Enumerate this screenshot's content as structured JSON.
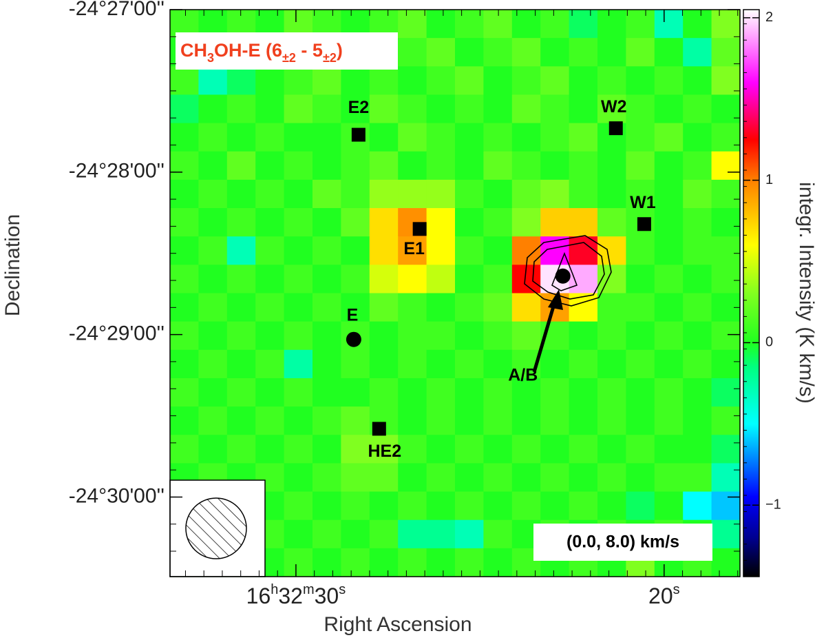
{
  "chart_data": {
    "type": "heatmap",
    "title": "CH3OH-E (6±2 - 5±2)",
    "annotation": "(0.0, 8.0) km/s",
    "x_label": "Right Ascension",
    "y_label": "Declination",
    "colorbar_label": "integr. Intensity (K km/s)",
    "xlim": [
      33.42,
      17.94
    ],
    "ylim": [
      27.0,
      30.49
    ],
    "xticks": [
      {
        "value": 30,
        "label": "16h32m30s"
      },
      {
        "value": 20,
        "label": "20s"
      }
    ],
    "yticks": [
      {
        "value": 27,
        "label": "-24°27'00''"
      },
      {
        "value": 28,
        "label": "-24°28'00''"
      },
      {
        "value": 29,
        "label": "-24°29'00''"
      },
      {
        "value": 30,
        "label": "-24°30'00''"
      }
    ],
    "zlim": [
      -1.44,
      2.05
    ],
    "zticks": [
      {
        "value": -1,
        "label": "−1"
      },
      0,
      1,
      2
    ],
    "colorscale": [
      [
        -1.44,
        "#000000"
      ],
      [
        -1.2,
        "#000090"
      ],
      [
        -0.95,
        "#0000ff"
      ],
      [
        -0.5,
        "#00ffff"
      ],
      [
        -0.15,
        "#00ff80"
      ],
      [
        0,
        "#20ff20"
      ],
      [
        0.3,
        "#80ff20"
      ],
      [
        0.6,
        "#ffff00"
      ],
      [
        1.0,
        "#ff8000"
      ],
      [
        1.25,
        "#ff0000"
      ],
      [
        1.6,
        "#ff00ff"
      ],
      [
        2.05,
        "#ffffff"
      ]
    ],
    "z": [
      [
        0.1,
        0.0,
        0.1,
        0.0,
        0.2,
        0.1,
        0.0,
        0.1,
        0.2,
        0.0,
        0.1,
        0.2,
        0.0,
        0.1,
        -0.1,
        0.0,
        0.1,
        -0.3,
        0.0,
        0.3
      ],
      [
        0.0,
        -0.1,
        -0.2,
        0.0,
        0.1,
        0.0,
        0.1,
        0.0,
        0.1,
        0.2,
        0.0,
        0.1,
        0.2,
        0.0,
        0.1,
        0.0,
        0.2,
        0.0,
        -0.25,
        0.2
      ],
      [
        0.1,
        -0.3,
        -0.1,
        0.0,
        0.1,
        0.2,
        0.0,
        0.1,
        0.0,
        0.1,
        0.2,
        0.0,
        0.1,
        0.2,
        0.0,
        0.1,
        0.0,
        0.1,
        0.0,
        0.3
      ],
      [
        -0.1,
        0.0,
        0.1,
        0.0,
        0.2,
        0.1,
        0.0,
        0.2,
        0.1,
        0.0,
        0.1,
        0.0,
        0.2,
        0.1,
        0.0,
        0.2,
        0.1,
        0.0,
        0.1,
        0.0
      ],
      [
        0.0,
        0.1,
        0.0,
        0.1,
        0.0,
        0.0,
        0.1,
        0.0,
        0.2,
        0.1,
        0.0,
        0.1,
        0.0,
        0.1,
        0.2,
        0.0,
        0.1,
        0.2,
        0.0,
        0.1
      ],
      [
        0.1,
        0.0,
        0.2,
        0.0,
        0.1,
        0.0,
        0.1,
        0.2,
        0.0,
        0.1,
        0.0,
        0.2,
        0.1,
        0.0,
        0.1,
        0.0,
        0.2,
        0.0,
        0.1,
        0.6
      ],
      [
        0.0,
        0.1,
        0.0,
        0.1,
        0.0,
        0.2,
        0.1,
        0.35,
        0.35,
        0.35,
        0.1,
        0.0,
        0.2,
        0.3,
        0.1,
        0.0,
        0.1,
        0.0,
        0.2,
        0.1
      ],
      [
        0.1,
        0.0,
        0.1,
        0.0,
        0.1,
        0.0,
        0.2,
        0.7,
        0.95,
        0.6,
        0.0,
        0.1,
        0.3,
        0.75,
        0.75,
        0.2,
        0.1,
        0.0,
        0.1,
        0.0
      ],
      [
        0.0,
        0.1,
        -0.3,
        0.1,
        0.0,
        0.1,
        0.0,
        0.7,
        0.9,
        0.6,
        0.1,
        0.0,
        1.0,
        1.6,
        1.3,
        0.7,
        0.1,
        0.0,
        0.1,
        0.1
      ],
      [
        0.1,
        0.0,
        0.1,
        0.0,
        0.1,
        0.0,
        0.1,
        0.5,
        0.6,
        0.45,
        0.0,
        0.1,
        1.25,
        2.0,
        1.9,
        0.3,
        0.0,
        0.1,
        0.0,
        0.1
      ],
      [
        0.0,
        0.1,
        0.0,
        0.1,
        0.0,
        0.1,
        0.0,
        0.2,
        0.1,
        0.0,
        0.1,
        0.2,
        0.7,
        0.9,
        0.6,
        0.1,
        0.1,
        0.0,
        0.1,
        0.0
      ],
      [
        0.1,
        0.0,
        0.1,
        0.0,
        0.1,
        0.0,
        0.1,
        0.0,
        0.1,
        0.1,
        0.0,
        0.1,
        0.2,
        0.1,
        0.0,
        0.1,
        0.0,
        0.1,
        0.0,
        0.1
      ],
      [
        0.0,
        0.1,
        0.0,
        0.1,
        -0.25,
        0.0,
        0.1,
        0.0,
        0.1,
        0.0,
        0.1,
        0.0,
        0.1,
        0.0,
        0.1,
        0.0,
        0.1,
        0.0,
        0.1,
        0.0
      ],
      [
        0.1,
        0.0,
        0.1,
        0.0,
        0.1,
        0.0,
        0.0,
        0.1,
        0.0,
        0.1,
        0.0,
        0.1,
        0.0,
        0.1,
        0.0,
        0.1,
        0.0,
        0.1,
        0.0,
        -0.1
      ],
      [
        0.0,
        0.1,
        0.0,
        0.1,
        0.0,
        0.1,
        0.2,
        0.1,
        0.0,
        0.1,
        0.0,
        0.1,
        0.0,
        0.1,
        0.0,
        0.1,
        0.0,
        0.1,
        0.0,
        0.1
      ],
      [
        0.1,
        0.0,
        0.1,
        0.0,
        0.1,
        0.0,
        0.3,
        0.3,
        0.1,
        0.0,
        0.1,
        0.0,
        0.1,
        0.0,
        0.1,
        0.0,
        0.1,
        0.0,
        0.0,
        -0.1
      ],
      [
        0.0,
        0.1,
        0.0,
        0.1,
        0.0,
        0.1,
        0.2,
        0.2,
        0.0,
        0.1,
        0.0,
        0.1,
        0.0,
        0.1,
        0.0,
        0.1,
        0.0,
        0.1,
        0.1,
        -0.3
      ],
      [
        0.1,
        0.0,
        0.1,
        0.0,
        0.1,
        0.0,
        0.1,
        0.0,
        0.1,
        0.0,
        0.1,
        0.0,
        0.1,
        0.0,
        0.1,
        0.0,
        -0.1,
        0.0,
        -0.5,
        -0.6
      ],
      [
        0.0,
        0.1,
        0.0,
        0.1,
        0.0,
        0.1,
        0.0,
        0.1,
        -0.2,
        -0.2,
        -0.3,
        0.1,
        0.0,
        0.1,
        0.0,
        0.1,
        0.0,
        0.1,
        0.0,
        -0.2
      ],
      [
        0.1,
        0.0,
        0.1,
        0.0,
        0.1,
        0.0,
        0.1,
        0.0,
        0.1,
        0.0,
        0.1,
        0.0,
        0.1,
        0.0,
        0.1,
        0.0,
        0.3,
        0.0,
        0.1,
        0.0
      ]
    ],
    "sources": [
      {
        "name": "E2",
        "ra": 28.3,
        "dec": 27.77,
        "shape": "square"
      },
      {
        "name": "W2",
        "ra": 21.31,
        "dec": 27.73,
        "shape": "square"
      },
      {
        "name": "W1",
        "ra": 20.54,
        "dec": 28.32,
        "shape": "square"
      },
      {
        "name": "E1",
        "ra": 26.64,
        "dec": 28.35,
        "shape": "square"
      },
      {
        "name": "E",
        "ra": 28.43,
        "dec": 29.03,
        "shape": "circle"
      },
      {
        "name": "A/B",
        "ra": 22.75,
        "dec": 28.64,
        "shape": "circle"
      },
      {
        "name": "HE2",
        "ra": 27.74,
        "dec": 29.58,
        "shape": "square"
      }
    ]
  }
}
